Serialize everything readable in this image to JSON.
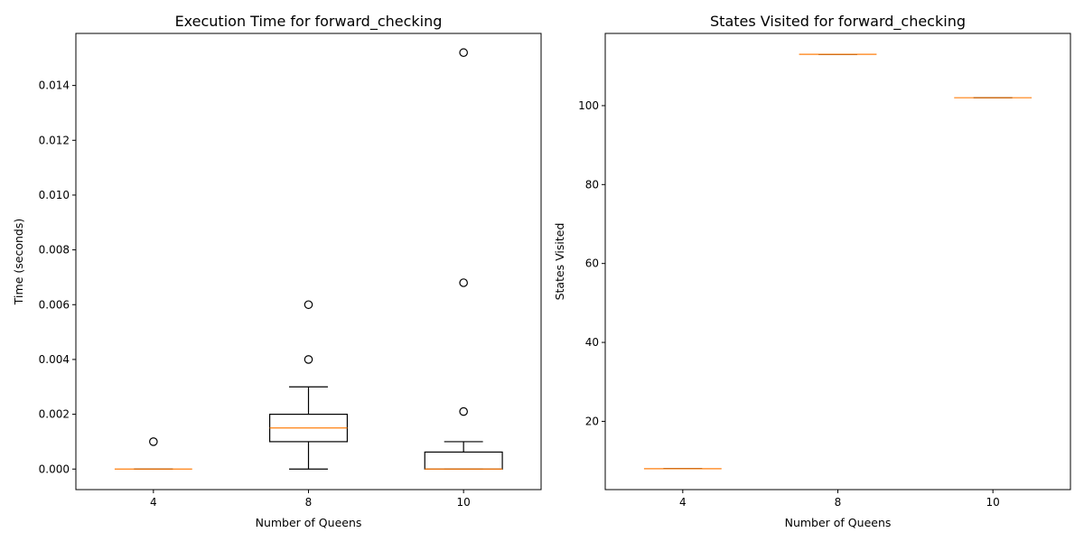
{
  "chart_data": [
    {
      "type": "boxplot",
      "title": "Execution Time for forward_checking",
      "xlabel": "Number of Queens",
      "ylabel": "Time (seconds)",
      "categories": [
        "4",
        "8",
        "10"
      ],
      "ylim": [
        -0.00075,
        0.0159
      ],
      "yticks": [
        "0.000",
        "0.002",
        "0.004",
        "0.006",
        "0.008",
        "0.010",
        "0.012",
        "0.014"
      ],
      "grid": false,
      "boxes": [
        {
          "category": "4",
          "whisker_low": 0.0,
          "q1": 0.0,
          "median": 0.0,
          "q3": 0.0,
          "whisker_high": 0.0,
          "outliers": [
            0.001
          ]
        },
        {
          "category": "8",
          "whisker_low": 0.0,
          "q1": 0.001,
          "median": 0.0015,
          "q3": 0.002,
          "whisker_high": 0.003,
          "outliers": [
            0.004,
            0.006
          ]
        },
        {
          "category": "10",
          "whisker_low": 0.0,
          "q1": 0.0,
          "median": 0.0,
          "q3": 0.00062,
          "whisker_high": 0.001,
          "outliers": [
            0.0021,
            0.0068,
            0.0152
          ]
        }
      ]
    },
    {
      "type": "boxplot",
      "title": "States Visited for forward_checking",
      "xlabel": "Number of Queens",
      "ylabel": "States Visited",
      "categories": [
        "4",
        "8",
        "10"
      ],
      "ylim": [
        2.7,
        118.3
      ],
      "yticks": [
        "20",
        "40",
        "60",
        "80",
        "100"
      ],
      "grid": false,
      "boxes": [
        {
          "category": "4",
          "whisker_low": 8,
          "q1": 8,
          "median": 8,
          "q3": 8,
          "whisker_high": 8,
          "outliers": []
        },
        {
          "category": "8",
          "whisker_low": 113,
          "q1": 113,
          "median": 113,
          "q3": 113,
          "whisker_high": 113,
          "outliers": []
        },
        {
          "category": "10",
          "whisker_low": 102,
          "q1": 102,
          "median": 102,
          "q3": 102,
          "whisker_high": 102,
          "outliers": []
        }
      ]
    }
  ],
  "colors": {
    "box": "#000000",
    "median": "#ff7f0e",
    "background": "#ffffff"
  }
}
